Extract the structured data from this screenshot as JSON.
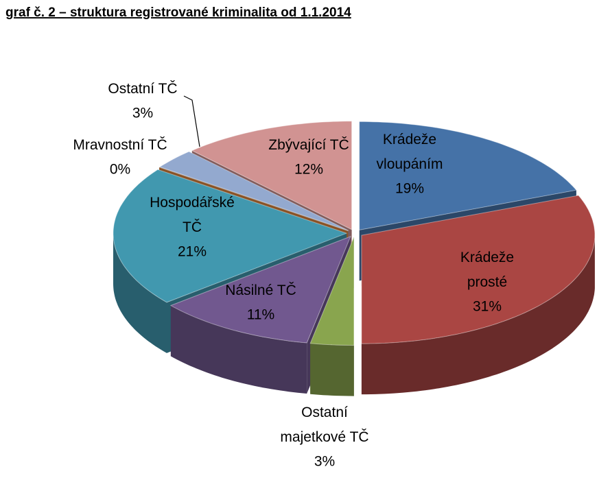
{
  "chart_data": {
    "type": "pie3d",
    "title": "graf č. 2 – struktura registrované kriminalita od 1.1.2014",
    "categories": [
      "Krádeže\nvloupáním",
      "Krádeže\nprosté",
      "Ostatní\nmajetkové TČ",
      "Násilné TČ",
      "Hospodářské\nTČ",
      "Mravnostní TČ",
      "Ostatní TČ",
      "Zbývající TČ"
    ],
    "values": [
      19,
      31,
      3,
      11,
      21,
      0,
      3,
      12
    ],
    "value_labels": [
      "19%",
      "31%",
      "3%",
      "11%",
      "21%",
      "0%",
      "3%",
      "12%"
    ],
    "colors": [
      "#4572a7",
      "#aa4643",
      "#89a54e",
      "#71588f",
      "#4198af",
      "#db843d",
      "#93a9cf",
      "#d19392"
    ]
  }
}
